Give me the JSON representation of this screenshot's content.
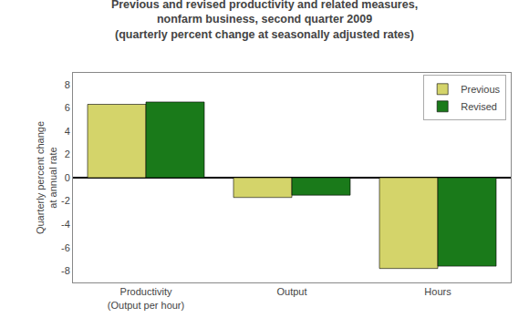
{
  "chart_data": {
    "type": "bar",
    "title": "Previous and revised productivity and related measures,\nnonfarm business, second quarter 2009\n(quarterly percent change at seasonally adjusted rates)",
    "categories": [
      "Productivity\n(Output per hour)",
      "Output",
      "Hours"
    ],
    "series": [
      {
        "name": "Previous",
        "color": "#d4d46a",
        "values": [
          6.3,
          -1.7,
          -7.8
        ]
      },
      {
        "name": "Revised",
        "color": "#1a7a1a",
        "values": [
          6.5,
          -1.5,
          -7.6
        ]
      }
    ],
    "ylabel": "Quarterly percent change\nat annual rate",
    "ylim": [
      -9,
      9
    ],
    "yticks": [
      -8,
      -6,
      -4,
      -2,
      0,
      2,
      4,
      6,
      8
    ],
    "legend": "upper right",
    "grid": false
  }
}
